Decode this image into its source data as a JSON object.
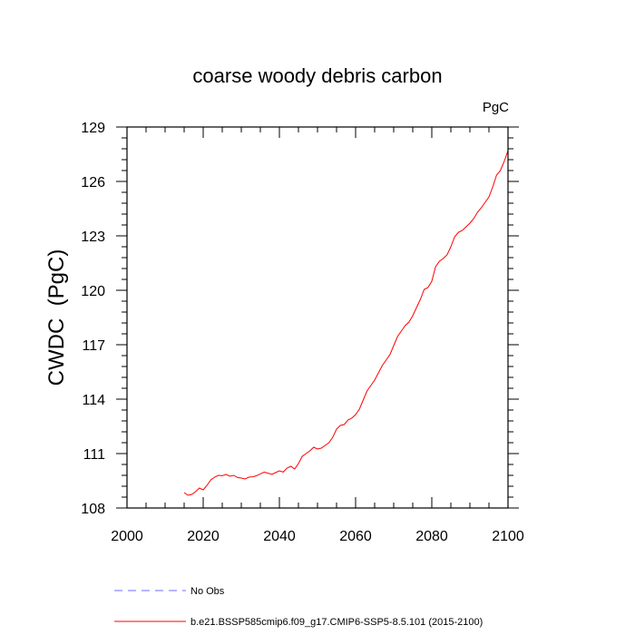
{
  "chart_data": {
    "type": "line",
    "title": "coarse woody debris carbon",
    "units_label": "PgC",
    "ylabel": "CWDC  (PgC)",
    "xlabel": "",
    "xlim": [
      2000,
      2100
    ],
    "ylim": [
      108,
      129
    ],
    "x_ticks": [
      2000,
      2020,
      2040,
      2060,
      2080,
      2100
    ],
    "y_ticks": [
      108,
      111,
      114,
      117,
      120,
      123,
      126,
      129
    ],
    "grid": false,
    "legend_position": "bottom",
    "series": [
      {
        "name": "b.e21.BSSP585cmip6.f09_g17.CMIP6-SSP5-8.5.101 (2015-2100)",
        "color": "#ff0000",
        "style": "solid",
        "x": [
          2015,
          2016,
          2017,
          2018,
          2019,
          2020,
          2021,
          2022,
          2023,
          2024,
          2025,
          2026,
          2027,
          2028,
          2029,
          2030,
          2031,
          2032,
          2033,
          2034,
          2035,
          2036,
          2037,
          2038,
          2039,
          2040,
          2041,
          2042,
          2043,
          2044,
          2045,
          2046,
          2047,
          2048,
          2049,
          2050,
          2051,
          2052,
          2053,
          2054,
          2055,
          2056,
          2057,
          2058,
          2059,
          2060,
          2061,
          2062,
          2063,
          2064,
          2065,
          2066,
          2067,
          2068,
          2069,
          2070,
          2071,
          2072,
          2073,
          2074,
          2075,
          2076,
          2077,
          2078,
          2079,
          2080,
          2081,
          2082,
          2083,
          2084,
          2085,
          2086,
          2087,
          2088,
          2089,
          2090,
          2091,
          2092,
          2093,
          2094,
          2095,
          2096,
          2097,
          2098,
          2099,
          2100
        ],
        "y": [
          108.85,
          108.7,
          108.75,
          108.9,
          109.1,
          109.0,
          109.25,
          109.55,
          109.7,
          109.8,
          109.78,
          109.85,
          109.75,
          109.8,
          109.68,
          109.65,
          109.6,
          109.7,
          109.72,
          109.78,
          109.88,
          109.98,
          109.92,
          109.85,
          109.95,
          110.05,
          109.98,
          110.2,
          110.3,
          110.15,
          110.45,
          110.85,
          111.0,
          111.15,
          111.35,
          111.25,
          111.3,
          111.45,
          111.6,
          111.9,
          112.35,
          112.55,
          112.6,
          112.85,
          112.95,
          113.15,
          113.45,
          113.95,
          114.45,
          114.75,
          115.05,
          115.45,
          115.85,
          116.15,
          116.45,
          116.95,
          117.45,
          117.75,
          118.05,
          118.25,
          118.6,
          119.05,
          119.5,
          120.05,
          120.15,
          120.5,
          121.3,
          121.6,
          121.75,
          121.95,
          122.4,
          122.95,
          123.2,
          123.3,
          123.5,
          123.7,
          123.95,
          124.3,
          124.55,
          124.85,
          125.15,
          125.7,
          126.35,
          126.6,
          127.1,
          127.7
        ]
      },
      {
        "name": "No Obs",
        "color": "#6b6bff",
        "style": "dashed",
        "x": [],
        "y": []
      }
    ]
  }
}
